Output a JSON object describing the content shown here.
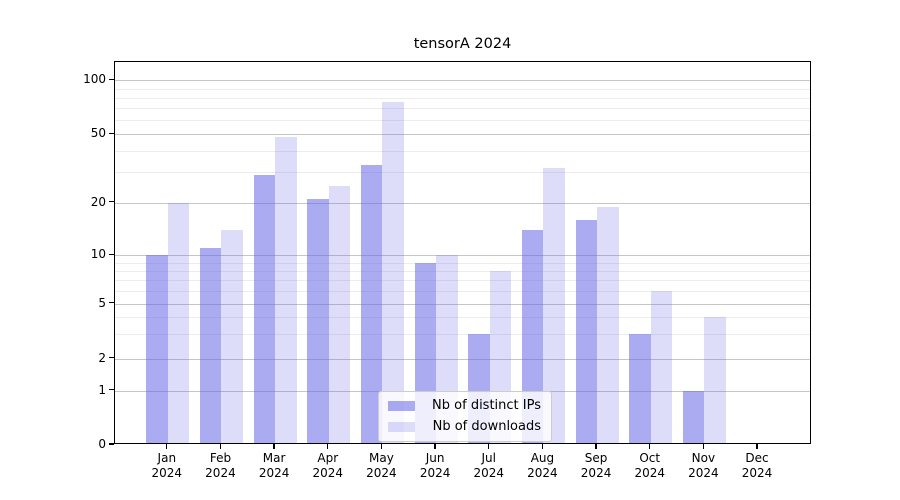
{
  "title": "tensorA 2024",
  "chart_data": {
    "type": "bar",
    "title": "tensorA 2024",
    "categories": [
      "Jan",
      "Feb",
      "Mar",
      "Apr",
      "May",
      "Jun",
      "Jul",
      "Aug",
      "Sep",
      "Oct",
      "Nov",
      "Dec"
    ],
    "category_year": "2024",
    "series": [
      {
        "name": "Nb of distinct IPs",
        "values": [
          10,
          11,
          29,
          21,
          33,
          9,
          3,
          14,
          16,
          3,
          1,
          0
        ],
        "color": "#6666E68C"
      },
      {
        "name": "Nb of downloads",
        "values": [
          20,
          14,
          48,
          25,
          76,
          10,
          8,
          32,
          19,
          6,
          4,
          0
        ],
        "color": "#6666E638"
      }
    ],
    "y_ticks": [
      0,
      1,
      2,
      5,
      10,
      20,
      50,
      100
    ],
    "y_scale": "symlog",
    "ylim": [
      0,
      115
    ],
    "xlabel": "",
    "ylabel": "",
    "grid": true,
    "legend_position": "lower center",
    "colors": {
      "axis": "#000000",
      "grid_major": "#c6c6c6",
      "grid_minor": "#ececec",
      "legend_border": "#cccccc"
    }
  }
}
